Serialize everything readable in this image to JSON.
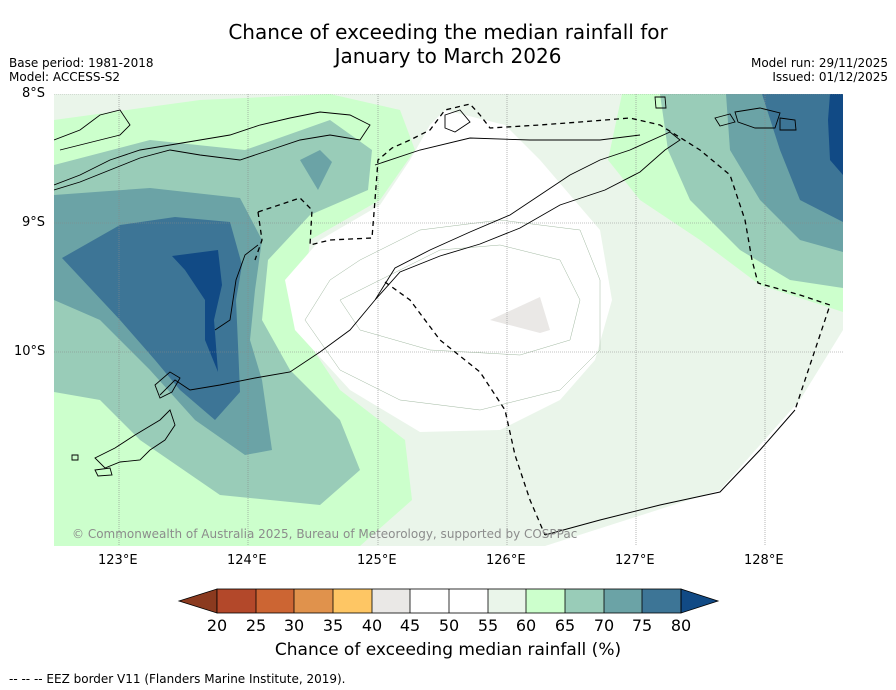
{
  "title_line1": "Chance of exceeding the median rainfall for",
  "title_line2": "January to March 2026",
  "base_period": "Base period: 1981-2018",
  "model": "Model: ACCESS-S2",
  "model_run": "Model run: 29/11/2025",
  "issued": "Issued: 01/12/2025",
  "copyright": "© Commonwealth of Australia 2025, Bureau of Meteorology, supported by COSPPac",
  "lat_labels": [
    "8°S",
    "9°S",
    "10°S"
  ],
  "lon_labels": [
    "123°E",
    "124°E",
    "125°E",
    "126°E",
    "127°E",
    "128°E"
  ],
  "colorbar": {
    "ticks": [
      "20",
      "25",
      "30",
      "35",
      "40",
      "45",
      "50",
      "55",
      "60",
      "65",
      "70",
      "75",
      "80"
    ],
    "title": "Chance of exceeding median rainfall (%)",
    "colors": {
      "below20": "#8b3a1f",
      "c20_25": "#b3482a",
      "c25_30": "#cc6533",
      "c30_35": "#e0924c",
      "c35_40": "#fec664",
      "c40_45": "#eae8e6",
      "c45_50": "#ffffff",
      "c50_55": "#ffffff",
      "c55_60": "#eaf5ea",
      "c60_65": "#ccffcc",
      "c65_70": "#99ccb8",
      "c70_75": "#6ba3a6",
      "c75_80": "#3d7596",
      "above80": "#114a85"
    }
  },
  "footer": "--  --  -- EEZ border V11 (Flanders Marine Institute, 2019)."
}
